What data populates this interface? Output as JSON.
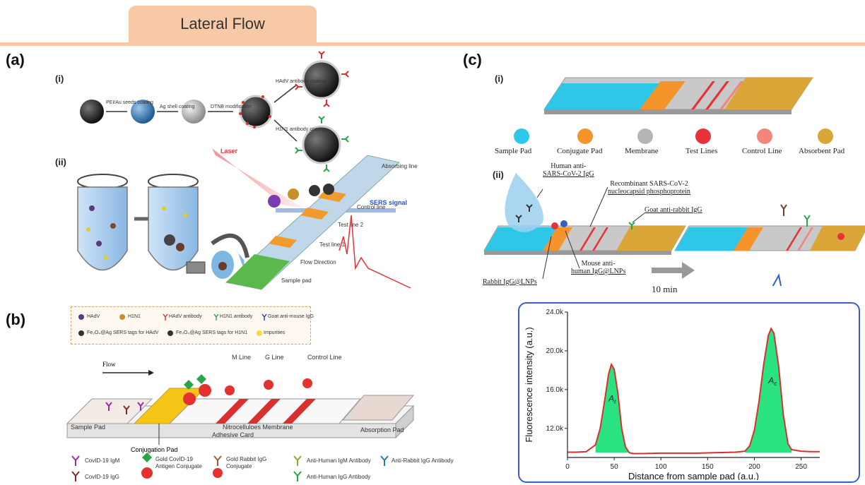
{
  "header": {
    "tab_label": "Lateral Flow"
  },
  "panels": {
    "a": {
      "label": "(a)",
      "sub_i": "(i)",
      "sub_ii": "(ii)",
      "steps": [
        "PEI/Au seeds coating",
        "Ag shell coating",
        "DTNB modification",
        "HAdV antibody coating",
        "H1N1 antibody coating"
      ],
      "strip_labels": {
        "laser": "Laser",
        "sers_signal": "SERS signal",
        "absorbing_line": "Absorbing line",
        "control_line": "Control line",
        "test_line_2": "Test line 2",
        "test_line_1": "Test line 1",
        "flow_direction": "Flow Direction",
        "sample_pad": "Sample pad"
      },
      "legend": [
        "HAdV",
        "H1N1",
        "HAdV antibody",
        "H1N1 antibody",
        "Goat anti-mouse IgG",
        "Fe₃O₄@Ag SERS tags for HAdV",
        "Fe₃O₄@Ag SERS tags for H1N1",
        "Impurities"
      ]
    },
    "b": {
      "label": "(b)",
      "flow": "Flow",
      "lines": {
        "m": "M Line",
        "g": "G Line",
        "control": "Control Line"
      },
      "pads": {
        "sample": "Sample Pad",
        "membrane": "Nitrocelluloes Membrane",
        "adhesive": "Adhesive Card",
        "absorption": "Absorption Pad",
        "conjugation": "Conjugation Pad"
      },
      "legend": {
        "igm": "CovID-19 IgM",
        "igg": "CovID-19 IgG",
        "gold_antigen_1": "Gold CovID-19",
        "gold_antigen_2": "Antigen Conjugate",
        "gold_rabbit_1": "Gold Rabbit IgG",
        "gold_rabbit_2": "Conjugate",
        "anti_human_igm": "Anti-Human IgM Antibody",
        "anti_human_igg": "Anti-Human IgG Antibody",
        "anti_rabbit": "Anti-Rabbit IgG Antibody"
      }
    },
    "c": {
      "label": "(c)",
      "sub_i": "(i)",
      "sub_ii": "(ii)",
      "legend": [
        "Sample Pad",
        "Conjugate Pad",
        "Membrane",
        "Test Lines",
        "Control Line",
        "Absorbent Pad"
      ],
      "legend_colors": [
        "#2ec7e8",
        "#f5942b",
        "#b5b5b5",
        "#e8323a",
        "#f2867a",
        "#d9a637"
      ],
      "annotations": {
        "human_igg_1": "Human anti-",
        "human_igg_2": "SARS-CoV-2 IgG",
        "recombinant_1": "Recombinant SARS-CoV-2",
        "recombinant_2": "nucleocapsid phosphoprotein",
        "goat": "Goat anti-rabbit IgG",
        "mouse_1": "Mouse anti-",
        "mouse_2": "human IgG@LNPs",
        "rabbit": "Rabbit IgG@LNPs",
        "time": "10 min"
      }
    }
  },
  "chart_data": {
    "type": "area",
    "title": "",
    "xlabel": "Distance from sample pad (a.u.)",
    "ylabel": "Fluorescence intensity (a.u.)",
    "xlim": [
      0,
      270
    ],
    "ylim": [
      9000,
      24000
    ],
    "x_ticks": [
      "0",
      "50",
      "100",
      "150",
      "200",
      "250"
    ],
    "y_ticks": [
      "12.0k",
      "16.0k",
      "20.0k",
      "24.0k"
    ],
    "peaks": [
      {
        "label": "A_t",
        "x": 47,
        "y": 18600
      },
      {
        "label": "A_c",
        "x": 218,
        "y": 22300
      }
    ],
    "baseline": 9500,
    "series": [
      {
        "x": [
          0,
          10,
          20,
          30,
          35,
          40,
          44,
          47,
          50,
          54,
          58,
          62,
          66,
          70,
          80,
          100,
          120,
          140,
          160,
          180,
          190,
          195,
          200,
          205,
          210,
          215,
          218,
          221,
          226,
          231,
          236,
          240,
          250,
          260,
          270
        ],
        "values": [
          9550,
          9550,
          9600,
          10300,
          12000,
          15000,
          17600,
          18600,
          18100,
          15600,
          12000,
          10100,
          9500,
          9400,
          9400,
          9450,
          9450,
          9450,
          9500,
          9550,
          9650,
          10200,
          11800,
          14800,
          18600,
          21600,
          22300,
          21800,
          18400,
          13400,
          10400,
          9800,
          9650,
          9600,
          9600
        ]
      }
    ]
  }
}
